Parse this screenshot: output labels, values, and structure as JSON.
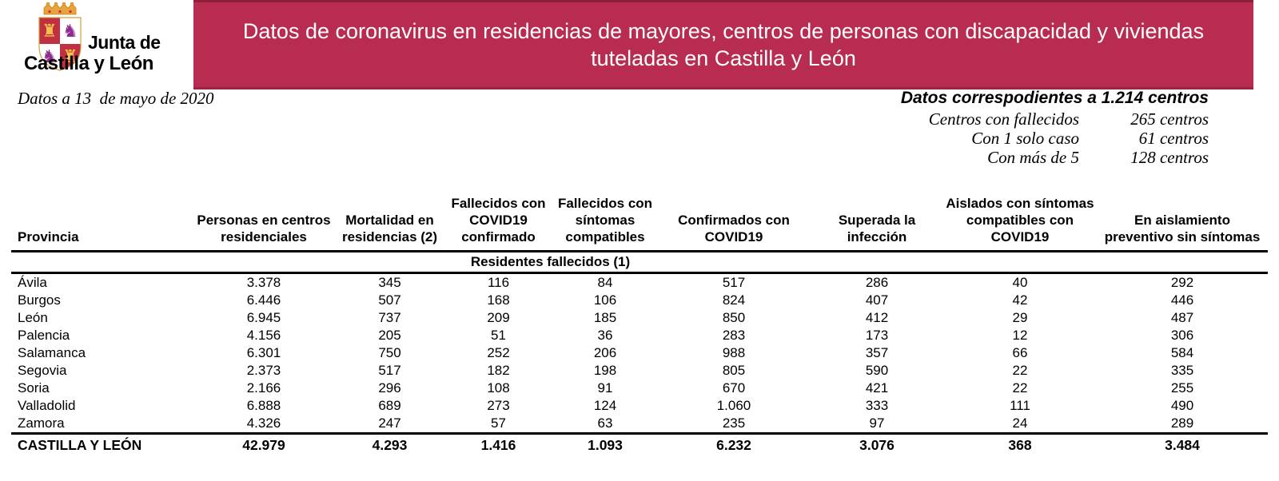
{
  "logo": {
    "line1": "Junta de",
    "line2": "Castilla y León"
  },
  "banner": {
    "bg_color": "#B72C50",
    "title_lines": [
      "Datos de coronavirus en residencias de mayores, centros de personas con discapacidad y viviendas",
      "tuteladas en Castilla y León"
    ]
  },
  "meta": {
    "date": "Datos a 13  de mayo de 2020"
  },
  "summary": {
    "title": "Datos correspodientes a 1.214 centros",
    "rows": [
      {
        "label": "Centros con fallecidos",
        "value": "265 centros"
      },
      {
        "label": "Con 1 solo caso",
        "value": "61 centros"
      },
      {
        "label": "Con más de 5",
        "value": "128 centros"
      }
    ]
  },
  "table": {
    "columns": [
      "Provincia",
      "Personas en centros residenciales",
      "Mortalidad en residencias (2)",
      "Fallecidos con COVID19 confirmado",
      "Fallecidos con síntomas compatibles",
      "Confirmados con COVID19",
      "Superada la infección",
      "Aislados con síntomas compatibles con COVID19",
      "En aislamiento preventivo sin síntomas"
    ],
    "subheader": "Residentes fallecidos (1)",
    "rows": [
      {
        "province": "Ávila",
        "values": [
          "3.378",
          "345",
          "116",
          "84",
          "517",
          "286",
          "40",
          "292"
        ]
      },
      {
        "province": "Burgos",
        "values": [
          "6.446",
          "507",
          "168",
          "106",
          "824",
          "407",
          "42",
          "446"
        ]
      },
      {
        "province": "León",
        "values": [
          "6.945",
          "737",
          "209",
          "185",
          "850",
          "412",
          "29",
          "487"
        ]
      },
      {
        "province": "Palencia",
        "values": [
          "4.156",
          "205",
          "51",
          "36",
          "283",
          "173",
          "12",
          "306"
        ]
      },
      {
        "province": "Salamanca",
        "values": [
          "6.301",
          "750",
          "252",
          "206",
          "988",
          "357",
          "66",
          "584"
        ]
      },
      {
        "province": "Segovia",
        "values": [
          "2.373",
          "517",
          "182",
          "198",
          "805",
          "590",
          "22",
          "335"
        ]
      },
      {
        "province": "Soria",
        "values": [
          "2.166",
          "296",
          "108",
          "91",
          "670",
          "421",
          "22",
          "255"
        ]
      },
      {
        "province": "Valladolid",
        "values": [
          "6.888",
          "689",
          "273",
          "124",
          "1.060",
          "333",
          "111",
          "490"
        ]
      },
      {
        "province": "Zamora",
        "values": [
          "4.326",
          "247",
          "57",
          "63",
          "235",
          "97",
          "24",
          "289"
        ]
      }
    ],
    "total": {
      "label": "CASTILLA Y LEÓN",
      "values": [
        "42.979",
        "4.293",
        "1.416",
        "1.093",
        "6.232",
        "3.076",
        "368",
        "3.484"
      ]
    }
  }
}
